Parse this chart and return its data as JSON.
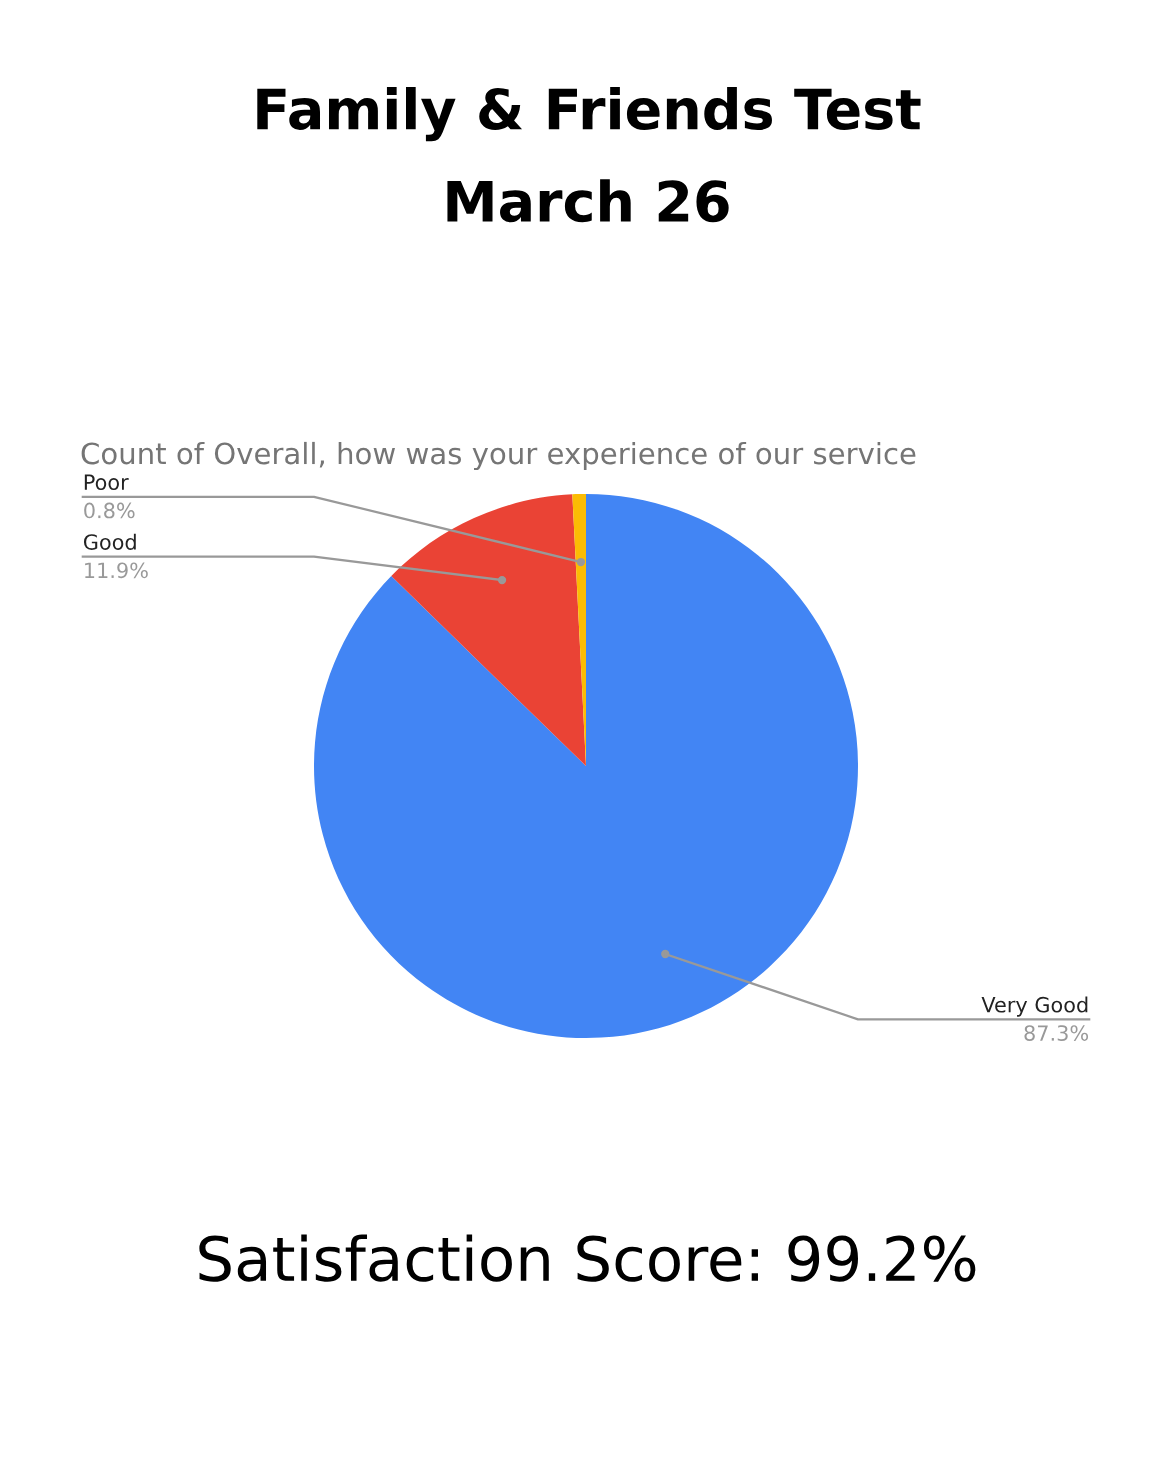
{
  "chart_data": {
    "type": "pie",
    "title": "Family & Friends Test\nMarch 26",
    "subtitle": "Count of Overall, how was your experience of our service",
    "categories": [
      "Very Good",
      "Good",
      "Poor"
    ],
    "values": [
      87.3,
      11.9,
      0.8
    ],
    "colors": [
      "#4285f4",
      "#ea4335",
      "#fbbc04"
    ],
    "value_labels": [
      "87.3%",
      "11.9%",
      "0.8%"
    ],
    "annotations": [
      "Satisfaction Score: 99.2%"
    ],
    "legend": false
  }
}
